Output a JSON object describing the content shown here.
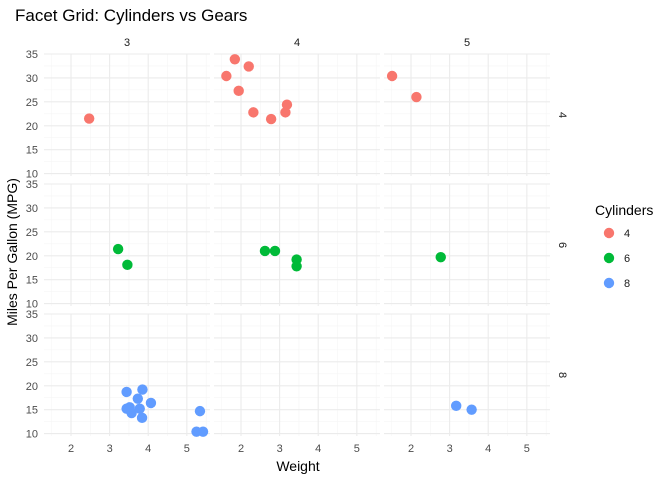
{
  "colors": {
    "cyl4": "#F8766D",
    "cyl6": "#00BA38",
    "cyl8": "#619CFF"
  },
  "chart_data": {
    "type": "scatter",
    "title": "Facet Grid: Cylinders vs Gears",
    "xlabel": "Weight",
    "ylabel": "Miles Per Gallon (MPG)",
    "xlim": [
      1.3,
      5.6
    ],
    "ylim": [
      9.5,
      35
    ],
    "x_ticks": [
      "2",
      "3",
      "4",
      "5"
    ],
    "y_ticks": [
      "10",
      "15",
      "20",
      "25",
      "30",
      "35"
    ],
    "x_tick_values": [
      2,
      3,
      4,
      5
    ],
    "y_tick_values": [
      10,
      15,
      20,
      25,
      30,
      35
    ],
    "facet_cols": [
      "3",
      "4",
      "5"
    ],
    "facet_rows": [
      "4",
      "6",
      "8"
    ],
    "legend": {
      "title": "Cylinders",
      "placement": "right",
      "entries": [
        {
          "label": "4",
          "color": "#F8766D"
        },
        {
          "label": "6",
          "color": "#00BA38"
        },
        {
          "label": "8",
          "color": "#619CFF"
        }
      ]
    },
    "panels": [
      {
        "col": "3",
        "row": "4",
        "points": [
          [
            2.47,
            21.5
          ]
        ]
      },
      {
        "col": "4",
        "row": "4",
        "points": [
          [
            2.32,
            22.8
          ],
          [
            3.19,
            24.4
          ],
          [
            3.15,
            22.8
          ],
          [
            2.2,
            32.4
          ],
          [
            1.62,
            30.4
          ],
          [
            1.84,
            33.9
          ],
          [
            1.94,
            27.3
          ],
          [
            2.78,
            21.4
          ]
        ]
      },
      {
        "col": "5",
        "row": "4",
        "points": [
          [
            2.14,
            26.0
          ],
          [
            1.51,
            30.4
          ]
        ]
      },
      {
        "col": "3",
        "row": "6",
        "points": [
          [
            3.22,
            21.4
          ],
          [
            3.46,
            18.1
          ]
        ]
      },
      {
        "col": "4",
        "row": "6",
        "points": [
          [
            2.62,
            21.0
          ],
          [
            2.88,
            21.0
          ],
          [
            3.44,
            19.2
          ],
          [
            3.44,
            17.8
          ]
        ]
      },
      {
        "col": "5",
        "row": "6",
        "points": [
          [
            2.77,
            19.7
          ]
        ]
      },
      {
        "col": "3",
        "row": "8",
        "points": [
          [
            3.44,
            18.7
          ],
          [
            3.57,
            14.3
          ],
          [
            4.07,
            16.4
          ],
          [
            3.73,
            17.3
          ],
          [
            3.78,
            15.2
          ],
          [
            5.25,
            10.4
          ],
          [
            5.42,
            10.4
          ],
          [
            5.34,
            14.7
          ],
          [
            3.52,
            15.5
          ],
          [
            3.44,
            15.2
          ],
          [
            3.84,
            13.3
          ],
          [
            3.85,
            19.2
          ]
        ]
      },
      {
        "col": "4",
        "row": "8",
        "points": []
      },
      {
        "col": "5",
        "row": "8",
        "points": [
          [
            3.17,
            15.8
          ],
          [
            3.57,
            15.0
          ]
        ]
      }
    ]
  }
}
